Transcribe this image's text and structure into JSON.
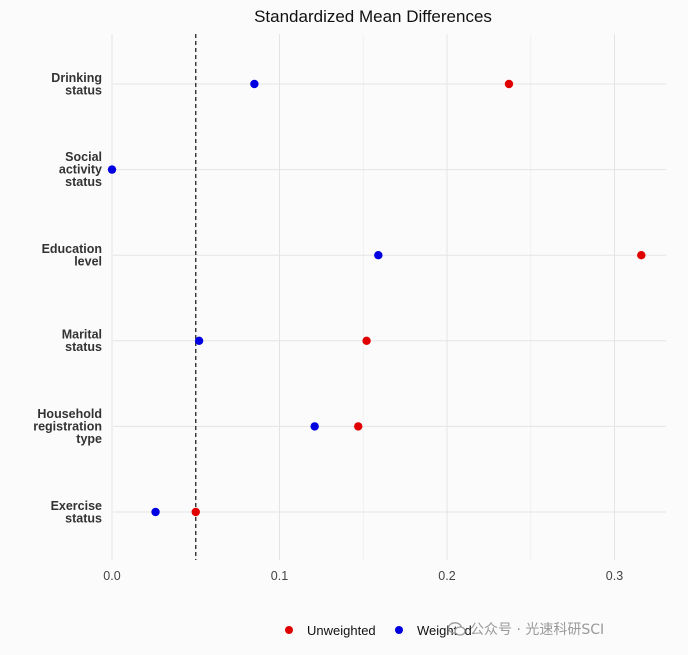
{
  "chart_data": {
    "type": "scatter",
    "title": "Standardized Mean Differences",
    "xlabel": "",
    "ylabel": "",
    "xlim": [
      0,
      0.33
    ],
    "xticks": [
      0.0,
      0.1,
      0.2,
      0.3
    ],
    "xtick_labels": [
      "0.0",
      "0.1",
      "0.2",
      "0.3"
    ],
    "threshold": 0.05,
    "categories": [
      [
        "Drinking",
        "status"
      ],
      [
        "Social",
        "activity",
        "status"
      ],
      [
        "Education",
        "level"
      ],
      [
        "Marital",
        "status"
      ],
      [
        "Household",
        "registration",
        "type"
      ],
      [
        "Exercise",
        "status"
      ]
    ],
    "series": [
      {
        "name": "Unweighted",
        "color": "#e00000",
        "values": [
          0.237,
          null,
          0.316,
          0.152,
          0.147,
          0.05
        ]
      },
      {
        "name": "Weighted",
        "color": "#0000e0",
        "values": [
          0.085,
          0.0,
          0.159,
          0.052,
          0.121,
          0.026
        ]
      }
    ],
    "legend_position": "bottom",
    "grid": true
  },
  "watermark": {
    "text": "公众号 · 光速科研SCI",
    "icon": "wechat-icon"
  }
}
